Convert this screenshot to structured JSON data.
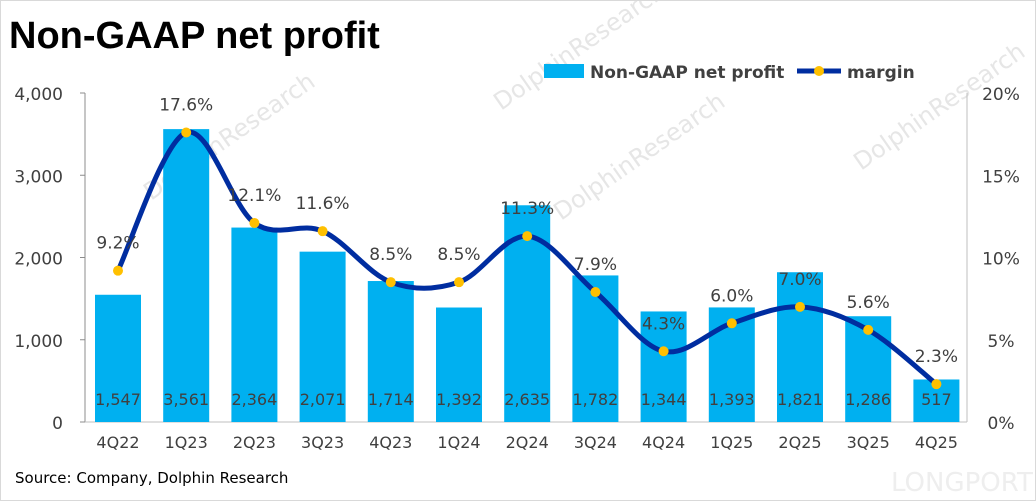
{
  "title": "Non-GAAP net profit",
  "source": "Source: Company, Dolphin Research",
  "watermark": "DolphinResearch",
  "logo_watermark": "LONGPORT",
  "colors": {
    "bar": "#00b0f0",
    "line": "#002da0",
    "marker": "#ffc000",
    "text": "#404040"
  },
  "chart_data": {
    "type": "bar",
    "categories": [
      "4Q22",
      "1Q23",
      "2Q23",
      "3Q23",
      "4Q23",
      "1Q24",
      "2Q24",
      "3Q24",
      "4Q24",
      "1Q25",
      "2Q25",
      "3Q25",
      "4Q25"
    ],
    "series": [
      {
        "name": "Non-GAAP net profit",
        "type": "bar",
        "axis": "left",
        "values": [
          1547,
          3561,
          2364,
          2071,
          1714,
          1392,
          2635,
          1782,
          1344,
          1393,
          1821,
          1286,
          517
        ],
        "labels": [
          "1,547",
          "3,561",
          "2,364",
          "2,071",
          "1,714",
          "1,392",
          "2,635",
          "1,782",
          "1,344",
          "1,393",
          "1,821",
          "1,286",
          "517"
        ]
      },
      {
        "name": "margin",
        "type": "line",
        "smooth": true,
        "axis": "right",
        "values": [
          9.2,
          17.6,
          12.1,
          11.6,
          8.5,
          8.5,
          11.3,
          7.9,
          4.3,
          6.0,
          7.0,
          5.6,
          2.3
        ],
        "labels": [
          "9.2%",
          "17.6%",
          "12.1%",
          "11.6%",
          "8.5%",
          "8.5%",
          "11.3%",
          "7.9%",
          "4.3%",
          "6.0%",
          "7.0%",
          "5.6%",
          "2.3%"
        ]
      }
    ],
    "ylim": [
      0,
      4000
    ],
    "y_ticks": [
      "0",
      "1,000",
      "2,000",
      "3,000",
      "4,000"
    ],
    "y2lim": [
      0,
      20
    ],
    "y2_ticks": [
      "0%",
      "5%",
      "10%",
      "15%",
      "20%"
    ],
    "grid": false,
    "legend": "top-right"
  }
}
